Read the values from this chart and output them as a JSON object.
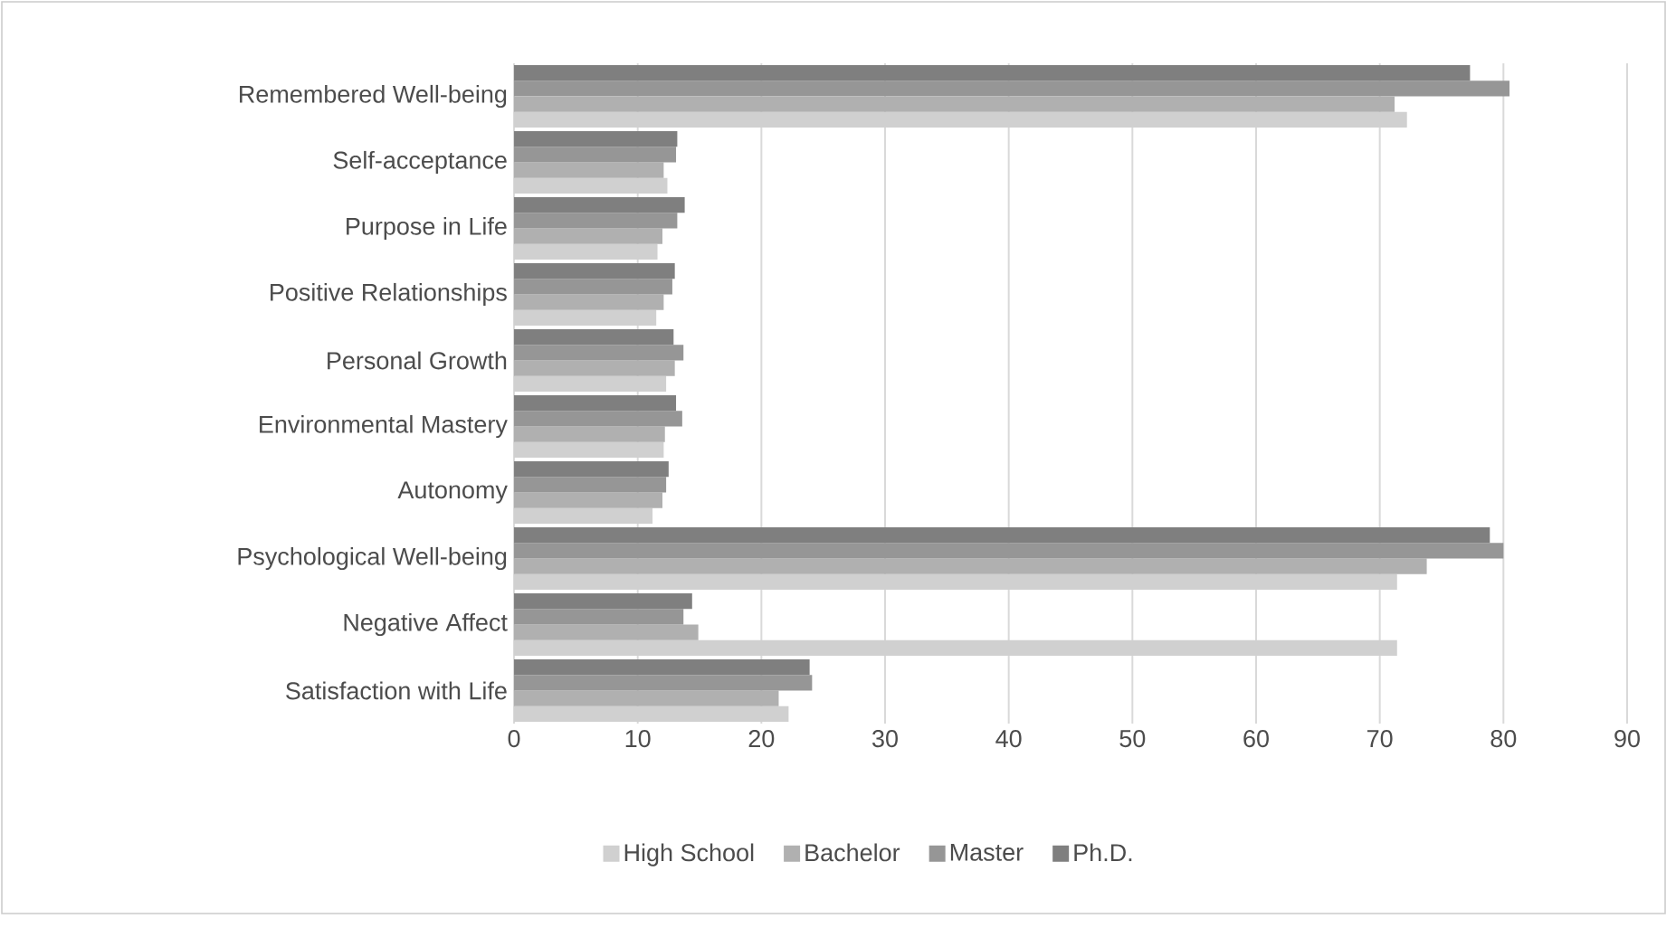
{
  "chart_data": {
    "type": "bar",
    "orientation": "horizontal",
    "categories": [
      "Remembered Well-being",
      "Self-acceptance",
      "Purpose in Life",
      "Positive Relationships",
      "Personal Growth",
      "Environmental Mastery",
      "Autonomy",
      "Psychological Well-being",
      "Negative Affect",
      "Satisfaction with Life"
    ],
    "series": [
      {
        "name": "High School",
        "color": "#d0d0d0",
        "values": [
          72.2,
          12.4,
          11.6,
          11.5,
          12.3,
          12.1,
          11.2,
          71.4,
          71.4,
          22.2
        ]
      },
      {
        "name": "Bachelor",
        "color": "#b0b0b0",
        "values": [
          71.2,
          12.1,
          12.0,
          12.1,
          13.0,
          12.2,
          12.0,
          73.8,
          14.9,
          21.4
        ]
      },
      {
        "name": "Master",
        "color": "#969696",
        "values": [
          80.5,
          13.1,
          13.2,
          12.8,
          13.7,
          13.6,
          12.3,
          80.0,
          13.7,
          24.1
        ]
      },
      {
        "name": "Ph.D.",
        "color": "#7f7f7f",
        "values": [
          77.3,
          13.2,
          13.8,
          13.0,
          12.9,
          13.1,
          12.5,
          78.9,
          14.4,
          23.9
        ]
      }
    ],
    "xlim": [
      0,
      90
    ],
    "xticks": [
      0,
      10,
      20,
      30,
      40,
      50,
      60,
      70,
      80,
      90
    ],
    "grid": "x",
    "legend": "bottom"
  }
}
